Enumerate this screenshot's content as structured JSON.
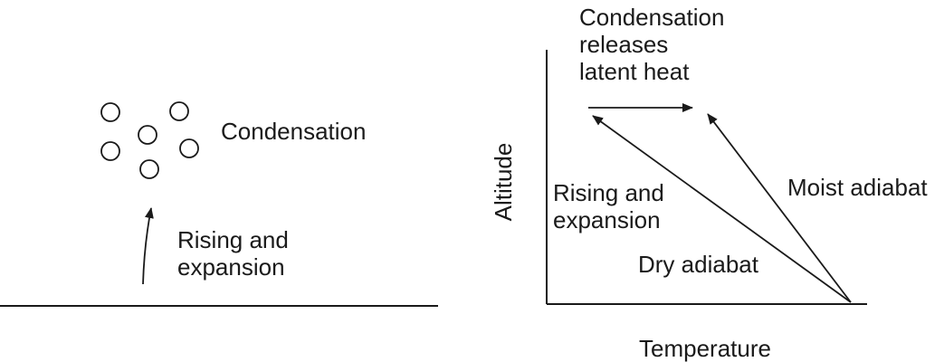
{
  "left_panel": {
    "condensation_label": "Condensation",
    "rising_label": [
      "Rising and",
      "expansion"
    ]
  },
  "right_panel": {
    "condensation_heat_label": [
      "Condensation",
      "releases",
      "latent heat"
    ],
    "rising_label": [
      "Rising and",
      "expansion"
    ],
    "dry_adiabat_label": "Dry adiabat",
    "moist_adiabat_label": "Moist adiabat",
    "x_axis_label": "Temperature",
    "y_axis_label": "Altitude"
  },
  "colors": {
    "ink": "#1a1a1a",
    "background": "#ffffff"
  }
}
